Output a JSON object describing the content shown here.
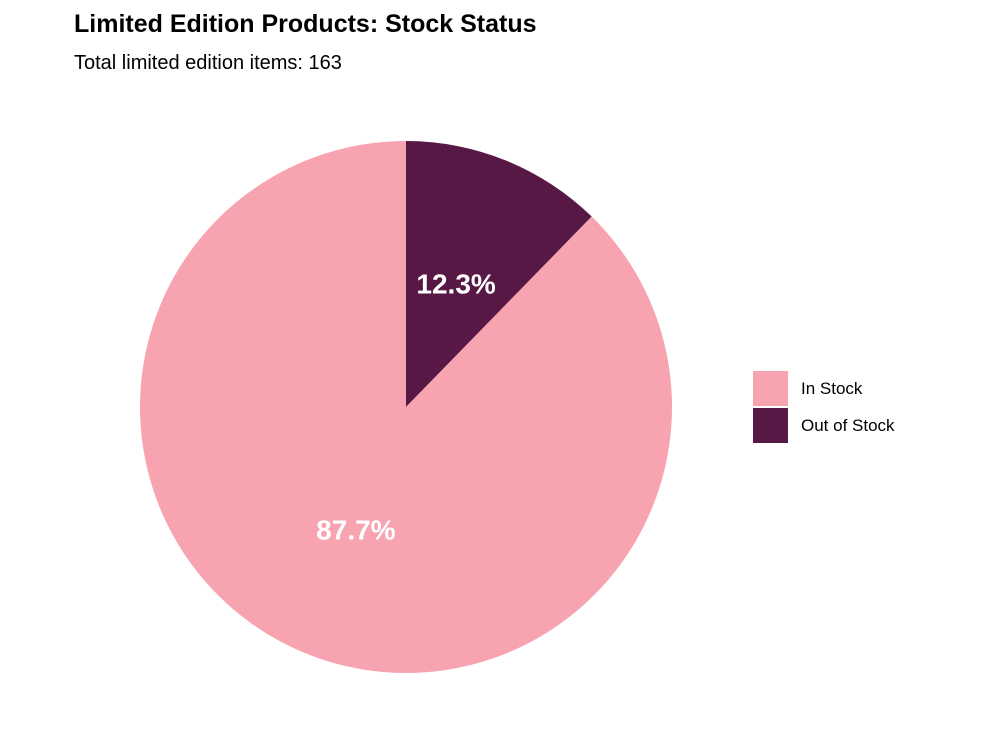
{
  "chart_data": {
    "type": "pie",
    "title": "Limited Edition Products: Stock Status",
    "subtitle": "Total limited edition items: 163",
    "categories": [
      "In Stock",
      "Out of Stock"
    ],
    "values": [
      87.7,
      12.3
    ],
    "labels": [
      "87.7%",
      "12.3%"
    ],
    "colors": [
      "#F7A4B0",
      "#581845"
    ],
    "label_color": "#FFFFFF",
    "legend_position": "right"
  }
}
